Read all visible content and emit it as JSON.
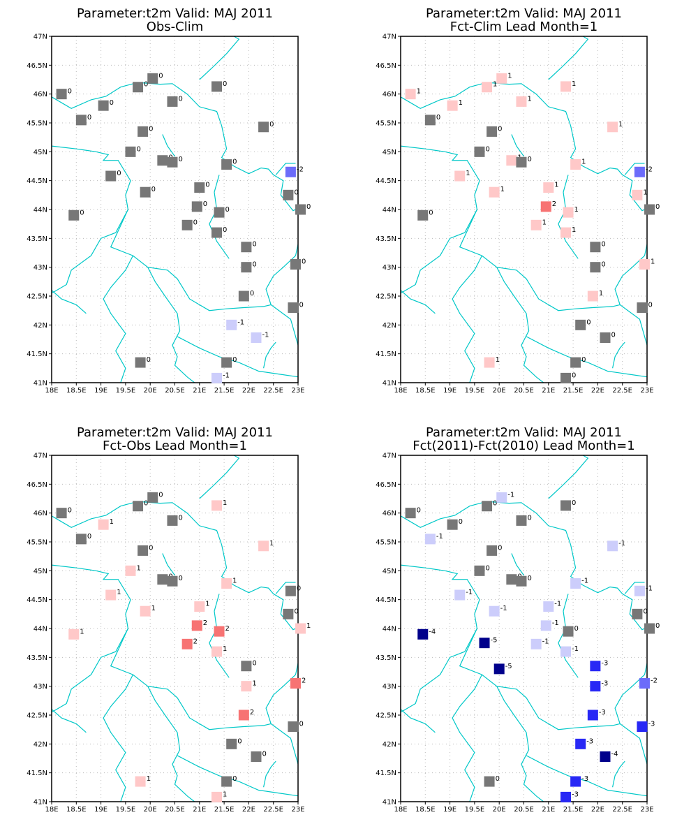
{
  "colors": {
    "neutral": "#777777",
    "pos1": "#ffc8c8",
    "pos2": "#f77373",
    "neg1": "#cccdfb",
    "neg2": "#6c6cfa",
    "neg3": "#2828f5",
    "neg4": "#00008b",
    "boundary": "#00c8c8",
    "grid": "#bbbbbb"
  },
  "axes": {
    "lat_labels": [
      "41N",
      "41.5N",
      "42N",
      "42.5N",
      "43N",
      "43.5N",
      "44N",
      "44.5N",
      "45N",
      "45.5N",
      "46N",
      "46.5N",
      "47N"
    ],
    "lon_labels": [
      "18E",
      "18.5E",
      "19E",
      "19.5E",
      "20E",
      "20.5E",
      "21E",
      "21.5E",
      "22E",
      "22.5E",
      "23E"
    ],
    "lat_range": [
      41,
      47
    ],
    "lon_range": [
      18,
      23
    ]
  },
  "stations": [
    [
      18.2,
      46.0
    ],
    [
      18.6,
      45.55
    ],
    [
      19.05,
      45.8
    ],
    [
      19.75,
      46.12
    ],
    [
      20.05,
      46.27
    ],
    [
      21.35,
      46.13
    ],
    [
      20.45,
      45.87
    ],
    [
      19.85,
      45.35
    ],
    [
      22.3,
      45.43
    ],
    [
      19.6,
      45.0
    ],
    [
      20.25,
      44.85
    ],
    [
      20.45,
      44.82
    ],
    [
      21.55,
      44.78
    ],
    [
      22.85,
      44.65
    ],
    [
      19.2,
      44.58
    ],
    [
      19.9,
      44.3
    ],
    [
      21.0,
      44.38
    ],
    [
      22.8,
      44.25
    ],
    [
      20.95,
      44.05
    ],
    [
      21.4,
      43.95
    ],
    [
      18.45,
      43.9
    ],
    [
      23.05,
      44.0
    ],
    [
      20.75,
      43.73
    ],
    [
      21.35,
      43.6
    ],
    [
      21.95,
      43.35
    ],
    [
      21.95,
      43.0
    ],
    [
      22.95,
      43.05
    ],
    [
      21.9,
      42.5
    ],
    [
      22.9,
      42.3
    ],
    [
      21.65,
      42.0
    ],
    [
      22.15,
      41.78
    ],
    [
      19.8,
      41.35
    ],
    [
      21.55,
      41.35
    ],
    [
      21.35,
      41.08
    ]
  ],
  "panels": [
    {
      "title_line1": "Parameter:t2m Valid: MAJ 2011",
      "title_line2": "Obs-Clim",
      "values": [
        0,
        0,
        0,
        0,
        0,
        0,
        0,
        0,
        0,
        0,
        0,
        0,
        0,
        -2,
        0,
        0,
        0,
        0,
        0,
        0,
        0,
        0,
        0,
        0,
        0,
        0,
        0,
        0,
        0,
        -1,
        -1,
        0,
        0,
        -1
      ]
    },
    {
      "title_line1": "Parameter:t2m Valid: MAJ 2011",
      "title_line2": "Fct-Clim Lead Month=1",
      "values": [
        1,
        0,
        1,
        1,
        1,
        1,
        1,
        0,
        1,
        0,
        1,
        0,
        1,
        -2,
        1,
        1,
        1,
        1,
        2,
        1,
        0,
        0,
        1,
        1,
        0,
        0,
        1,
        1,
        0,
        0,
        0,
        1,
        0,
        0
      ]
    },
    {
      "title_line1": "Parameter:t2m Valid: MAJ 2011",
      "title_line2": "Fct-Obs Lead Month=1",
      "values": [
        0,
        0,
        1,
        0,
        0,
        1,
        0,
        0,
        1,
        1,
        0,
        0,
        1,
        0,
        1,
        1,
        1,
        0,
        2,
        2,
        1,
        1,
        2,
        1,
        0,
        1,
        2,
        2,
        0,
        0,
        0,
        1,
        0,
        1
      ]
    },
    {
      "title_line1": "Parameter:t2m Valid: MAJ 2011",
      "title_line2": "Fct(2011)-Fct(2010) Lead Month=1",
      "values": [
        0,
        -1,
        0,
        0,
        -1,
        0,
        0,
        0,
        -1,
        0,
        0,
        0,
        -1,
        -1,
        -1,
        -1,
        -1,
        0,
        -1,
        0,
        -4,
        0,
        -1,
        -1,
        -3,
        -3,
        -2,
        -3,
        -3,
        -3,
        -4,
        0,
        -3,
        -3
      ]
    }
  ],
  "extra_points": {
    "panel3": [
      [
        19.7,
        43.75,
        -5
      ],
      [
        20.0,
        43.3,
        -5
      ]
    ]
  }
}
